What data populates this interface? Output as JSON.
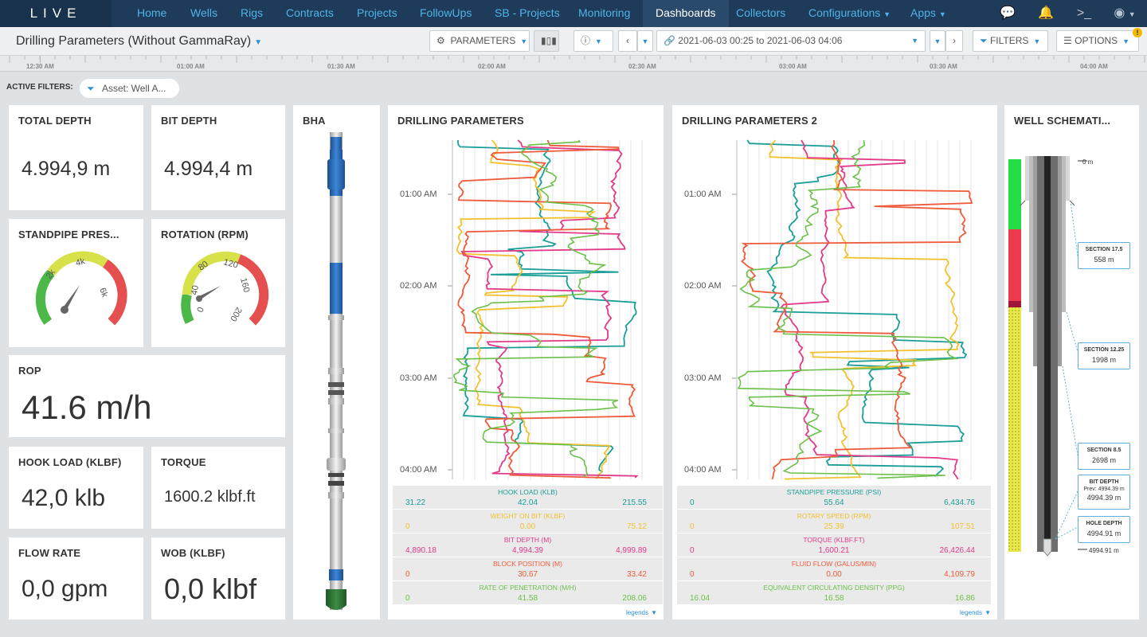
{
  "nav": {
    "logo": "LIVE",
    "items": [
      "Home",
      "Wells",
      "Rigs",
      "Contracts",
      "Projects",
      "FollowUps",
      "SB - Projects",
      "Monitoring",
      "Dashboards",
      "Collectors",
      "Configurations",
      "Apps"
    ],
    "active": "Dashboards"
  },
  "toolbar": {
    "title": "Drilling Parameters (Without GammaRay)",
    "parameters_label": "PARAMETERS",
    "time_range": "2021-06-03 00:25 to 2021-06-03 04:06",
    "filters_label": "FILTERS",
    "options_label": "OPTIONS",
    "options_badge": "!"
  },
  "timeline": {
    "ticks": [
      "12:30 AM",
      "01:00 AM",
      "01:30 AM",
      "02:00 AM",
      "02:30 AM",
      "03:00 AM",
      "03:30 AM",
      "04:00 AM"
    ]
  },
  "filters": {
    "label": "ACTIVE FILTERS:",
    "chip": "Asset: Well A..."
  },
  "cards": {
    "total_depth": {
      "title": "TOTAL DEPTH",
      "value": "4.994,9 m"
    },
    "bit_depth": {
      "title": "BIT DEPTH",
      "value": "4.994,4 m"
    },
    "standpipe": {
      "title": "STANDPIPE PRES...",
      "ticks": [
        "2k",
        "4k",
        "6k"
      ]
    },
    "rotation": {
      "title": "ROTATION (RPM)",
      "ticks": [
        "0",
        "40",
        "80",
        "120",
        "160",
        "200"
      ]
    },
    "rop": {
      "title": "ROP",
      "value": "41.6 m/h"
    },
    "hook_load": {
      "title": "HOOK LOAD (KLBF)",
      "value": "42,0 klb"
    },
    "torque": {
      "title": "TORQUE",
      "value": "1600.2 klbf.ft"
    },
    "flow_rate": {
      "title": "FLOW RATE",
      "value": "0,0 gpm"
    },
    "wob": {
      "title": "WOB (KLBF)",
      "value": "0,0 klbf"
    },
    "bha": {
      "title": "BHA"
    },
    "well": {
      "title": "WELL SCHEMATI..."
    }
  },
  "dp1": {
    "title": "DRILLING PARAMETERS",
    "times": [
      "01:00 AM",
      "02:00 AM",
      "03:00 AM",
      "04:00 AM"
    ],
    "legend": [
      {
        "name": "HOOK LOAD (KLB)",
        "min": "31.22",
        "cur": "42.04",
        "max": "215.55",
        "color": "#1a9e98"
      },
      {
        "name": "WEIGHT ON BIT (KLBF)",
        "min": "0",
        "cur": "0.00",
        "max": "75.12",
        "color": "#f2c12e"
      },
      {
        "name": "BIT DEPTH (M)",
        "min": "4,890.18",
        "cur": "4,994.39",
        "max": "4,999.89",
        "color": "#e23a8a"
      },
      {
        "name": "BLOCK POSITION (M)",
        "min": "0",
        "cur": "30.67",
        "max": "33.42",
        "color": "#ee5a3a"
      },
      {
        "name": "RATE OF PENETRATION (M/H)",
        "min": "0",
        "cur": "41.58",
        "max": "208.06",
        "color": "#6cc04a"
      }
    ],
    "legends_label": "legends"
  },
  "dp2": {
    "title": "DRILLING PARAMETERS 2",
    "times": [
      "01:00 AM",
      "02:00 AM",
      "03:00 AM",
      "04:00 AM"
    ],
    "legend": [
      {
        "name": "STANDPIPE PRESSURE (PSI)",
        "min": "0",
        "cur": "55.64",
        "max": "6,434.76",
        "color": "#1a9e98"
      },
      {
        "name": "ROTARY SPEED (RPM)",
        "min": "0",
        "cur": "25.39",
        "max": "107.51",
        "color": "#f2c12e"
      },
      {
        "name": "TORQUE (KLBF.FT)",
        "min": "0",
        "cur": "1,600.21",
        "max": "26,426.44",
        "color": "#e23a8a"
      },
      {
        "name": "FLUID FLOW (GALUS/MIN)",
        "min": "0",
        "cur": "0.00",
        "max": "4,109.79",
        "color": "#ee5a3a"
      },
      {
        "name": "EQUIVALENT CIRCULATING DENSITY (PPG)",
        "min": "16.04",
        "cur": "16.58",
        "max": "16.86",
        "color": "#6cc04a"
      }
    ],
    "legends_label": "legends"
  },
  "well": {
    "top": "0 m",
    "sections": [
      {
        "label": "SECTION 17.5",
        "depth": "558 m"
      },
      {
        "label": "SECTION 12.25",
        "depth": "1998 m"
      },
      {
        "label": "SECTION 8.5",
        "depth": "2698 m"
      }
    ],
    "bit_depth": {
      "label": "BIT DEPTH",
      "prev": "Prev: 4994.39 m",
      "value": "4994.39 m"
    },
    "hole_depth": {
      "label": "HOLE DEPTH",
      "value": "4994.91 m"
    },
    "bottom": "4994.91 m"
  }
}
